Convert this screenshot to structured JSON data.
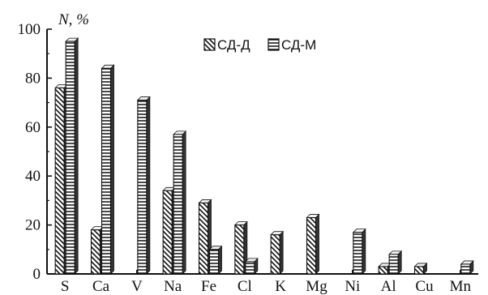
{
  "chart_data": {
    "type": "bar",
    "style": "3d",
    "ylabel": "N, %",
    "ylim": [
      0,
      100
    ],
    "yticks": [
      0,
      20,
      40,
      60,
      80,
      100
    ],
    "grid": false,
    "legend": "top-center",
    "categories": [
      "S",
      "Ca",
      "V",
      "Na",
      "Fe",
      "Cl",
      "K",
      "Mg",
      "Ni",
      "Al",
      "Cu",
      "Mn"
    ],
    "series": [
      {
        "name": "СД-Д",
        "pattern": "diagonal-hatch",
        "values": [
          76,
          18,
          0,
          34,
          29,
          20,
          16,
          23,
          0,
          3,
          3,
          0
        ]
      },
      {
        "name": "СД-М",
        "pattern": "horizontal-hatch",
        "values": [
          95,
          84,
          71,
          57,
          10,
          5,
          0,
          0,
          17,
          8,
          0,
          4
        ]
      }
    ]
  }
}
